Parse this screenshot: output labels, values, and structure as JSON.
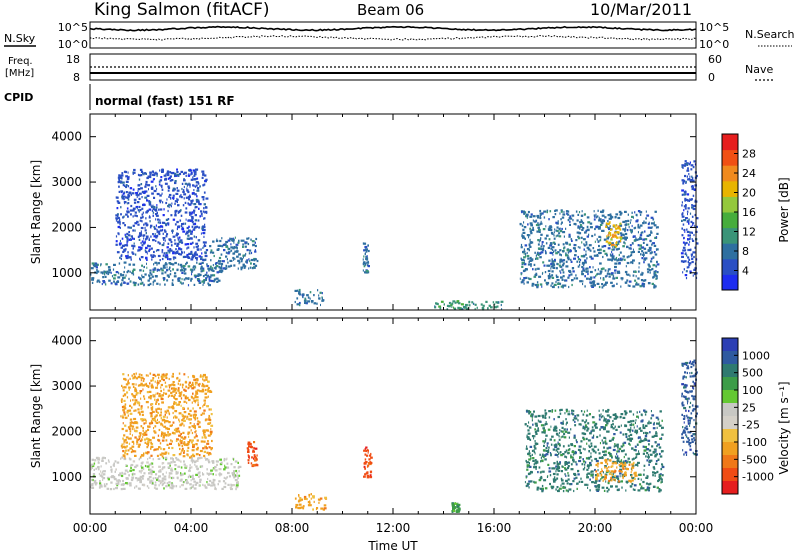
{
  "header": {
    "station": "King Salmon (fitACF)",
    "beam": "Beam 06",
    "date": "10/Mar/2011"
  },
  "status_panels": {
    "nsky_label": "N.Sky",
    "nsearch_label": "N.Search",
    "log_top": "10^5",
    "log_bottom": "10^0",
    "freq_label_1": "Freq.",
    "freq_label_2": "[MHz]",
    "freq_ticks": [
      "18",
      "8"
    ],
    "nave_label": "Nave",
    "nave_ticks": [
      "60",
      "0"
    ],
    "cpid_label": "CPID",
    "cpid_value": "normal (fast) 151 RF"
  },
  "chart_data": [
    {
      "type": "heatmap",
      "title": "",
      "xlabel": "Time UT",
      "ylabel": "Slant Range [km]",
      "x_ticks": [
        "00:00",
        "04:00",
        "08:00",
        "12:00",
        "16:00",
        "20:00",
        "00:00"
      ],
      "x_range_hours": [
        0,
        24
      ],
      "y_ticks": [
        "1000",
        "2000",
        "3000",
        "4000"
      ],
      "ylim": [
        180,
        4500
      ],
      "colorbar": {
        "label": "Power [dB]",
        "ticks": [
          "4",
          "8",
          "12",
          "16",
          "20",
          "24",
          "28"
        ],
        "range": [
          0,
          32
        ],
        "colors": [
          "#1e2df0",
          "#2a4fc4",
          "#2e6fa0",
          "#3a9478",
          "#46ad3c",
          "#94c83c",
          "#e8b400",
          "#f08a1e",
          "#f05014",
          "#e61e1e"
        ]
      },
      "echo_regions": [
        {
          "t0": 0.0,
          "t1": 5.3,
          "r0": 750,
          "r1": 1250,
          "value": 8,
          "note": "dense band"
        },
        {
          "t0": 1.0,
          "t1": 4.6,
          "r0": 1300,
          "r1": 3300,
          "value": 6
        },
        {
          "t0": 4.7,
          "t1": 6.6,
          "r0": 1100,
          "r1": 1800,
          "value": 7
        },
        {
          "t0": 8.1,
          "t1": 9.2,
          "r0": 300,
          "r1": 650,
          "value": 7
        },
        {
          "t0": 10.8,
          "t1": 11.0,
          "r0": 1000,
          "r1": 1700,
          "value": 9
        },
        {
          "t0": 13.6,
          "t1": 16.3,
          "r0": 200,
          "r1": 400,
          "value": 10
        },
        {
          "t0": 17.0,
          "t1": 22.5,
          "r0": 700,
          "r1": 2400,
          "value": 9
        },
        {
          "t0": 20.4,
          "t1": 21.0,
          "r0": 1500,
          "r1": 2200,
          "value": 20
        },
        {
          "t0": 23.4,
          "t1": 24.0,
          "r0": 900,
          "r1": 3500,
          "value": 6
        }
      ]
    },
    {
      "type": "heatmap",
      "title": "",
      "xlabel": "Time UT",
      "ylabel": "Slant Range [km]",
      "x_ticks": [
        "00:00",
        "04:00",
        "08:00",
        "12:00",
        "16:00",
        "20:00",
        "00:00"
      ],
      "x_range_hours": [
        0,
        24
      ],
      "y_ticks": [
        "1000",
        "2000",
        "3000",
        "4000"
      ],
      "ylim": [
        180,
        4500
      ],
      "colorbar": {
        "label": "Velocity [m s⁻¹]",
        "ticks": [
          "1000",
          "500",
          "100",
          "25",
          "-25",
          "-100",
          "-500",
          "-1000"
        ],
        "colors": [
          "#2c3fb4",
          "#2f5aa0",
          "#2f7a70",
          "#3c9c48",
          "#64c832",
          "#c8c8c4",
          "#d4d0c8",
          "#f0c040",
          "#f0a020",
          "#f07818",
          "#f04c14",
          "#e61e1e"
        ]
      },
      "echo_regions": [
        {
          "t0": 0.0,
          "t1": 5.9,
          "r0": 750,
          "r1": 1450,
          "value": 0,
          "note": "ground scatter"
        },
        {
          "t0": 1.2,
          "t1": 4.8,
          "r0": 1450,
          "r1": 3300,
          "value": -150
        },
        {
          "t0": 6.2,
          "t1": 6.6,
          "r0": 1250,
          "r1": 1850,
          "value": -600
        },
        {
          "t0": 8.1,
          "t1": 9.3,
          "r0": 300,
          "r1": 650,
          "value": -200
        },
        {
          "t0": 10.8,
          "t1": 11.1,
          "r0": 1000,
          "r1": 1700,
          "value": -700
        },
        {
          "t0": 14.3,
          "t1": 14.6,
          "r0": 250,
          "r1": 450,
          "value": 60
        },
        {
          "t0": 17.2,
          "t1": 22.7,
          "r0": 700,
          "r1": 2500,
          "value": 150
        },
        {
          "t0": 20.0,
          "t1": 21.6,
          "r0": 900,
          "r1": 1400,
          "value": -300
        },
        {
          "t0": 23.4,
          "t1": 24.0,
          "r0": 1500,
          "r1": 3600,
          "value": 500
        }
      ]
    }
  ]
}
